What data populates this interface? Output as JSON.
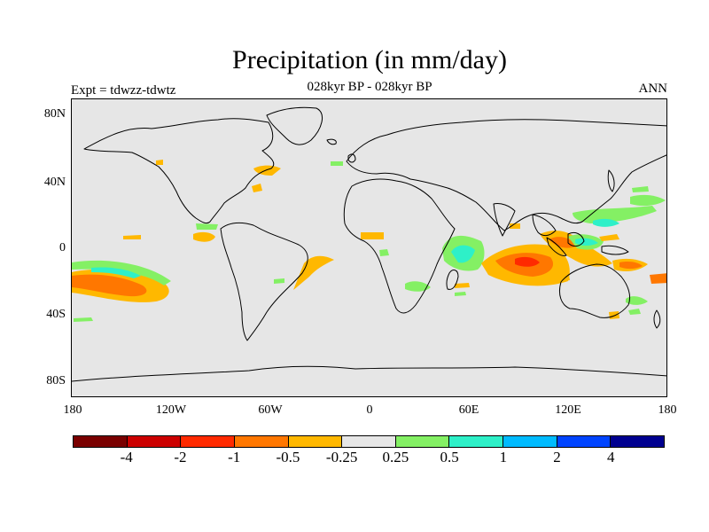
{
  "title": "Precipitation (in mm/day)",
  "subtitle": "028kyr BP - 028kyr BP",
  "experiment_label": "Expt = tdwzz-tdwtz",
  "season_label": "ANN",
  "axes": {
    "lat_labels": [
      "80N",
      "40N",
      "0",
      "40S",
      "80S"
    ],
    "lon_labels": [
      "180",
      "120W",
      "60W",
      "0",
      "60E",
      "120E",
      "180"
    ]
  },
  "colorbar": {
    "colors": [
      "#7a0000",
      "#cc0000",
      "#ff2a00",
      "#ff7700",
      "#ffb800",
      "#e6e6e6",
      "#84f064",
      "#2ef0c8",
      "#00bbff",
      "#0044ff",
      "#000090"
    ],
    "labels": [
      "-4",
      "-2",
      "-1",
      "-0.5",
      "-0.25",
      "0.25",
      "0.5",
      "1",
      "2",
      "4"
    ]
  },
  "map_colors": {
    "background": "#e6e6e6",
    "coastline": "#000000",
    "dry_strong": "#ff2a00",
    "dry_moderate": "#ff7700",
    "dry_weak": "#ffb800",
    "wet_weak": "#84f064",
    "wet_moderate": "#2ef0c8",
    "wet_strong": "#00bbff"
  }
}
